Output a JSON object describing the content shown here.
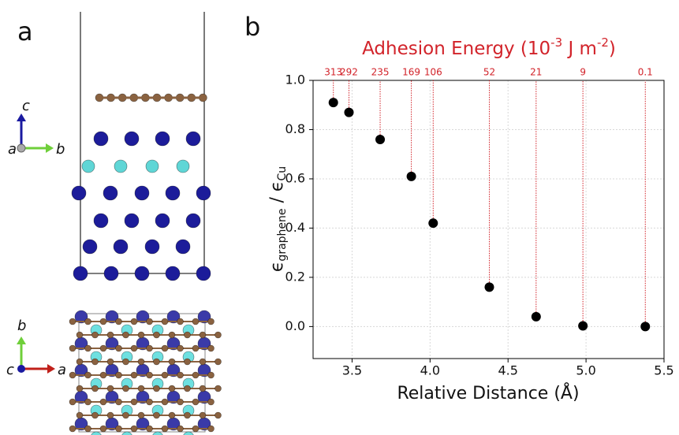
{
  "panel_labels": [
    "a",
    "b"
  ],
  "panel_a": {
    "side_axes": [
      "c",
      "a",
      "b"
    ],
    "top_axes": [
      "b",
      "c",
      "a"
    ]
  },
  "chart_data": {
    "type": "scatter",
    "title": [
      "Adhesion Energy (10",
      "-3",
      " J m",
      "-2",
      ")"
    ],
    "x_label": "Relative Distance (Å)",
    "y_label": [
      "ϵ",
      "graphene",
      " / ϵ",
      "Cu"
    ],
    "x": [
      3.38,
      3.48,
      3.68,
      3.88,
      4.02,
      4.38,
      4.68,
      4.98,
      5.38
    ],
    "values": [
      0.91,
      0.87,
      0.76,
      0.61,
      0.42,
      0.16,
      0.04,
      0.003,
      0.0
    ],
    "adhesion_energies": [
      313,
      292,
      235,
      169,
      106,
      52,
      21,
      9,
      0.1
    ],
    "color": "#000000",
    "guide_color": "#d2232a",
    "xlim": [
      3.25,
      5.5
    ],
    "ylim": [
      -0.13,
      1.0
    ],
    "xticks": [
      3.5,
      {
        "value": 4,
        "label": "4.0"
      },
      4.5,
      {
        "value": 5,
        "label": "5.0"
      },
      5.5
    ],
    "yticks": [
      {
        "value": 0,
        "label": "0.0"
      },
      0.2,
      0.4,
      0.6,
      0.8,
      {
        "value": 1,
        "label": "1.0"
      }
    ],
    "grid": true
  }
}
